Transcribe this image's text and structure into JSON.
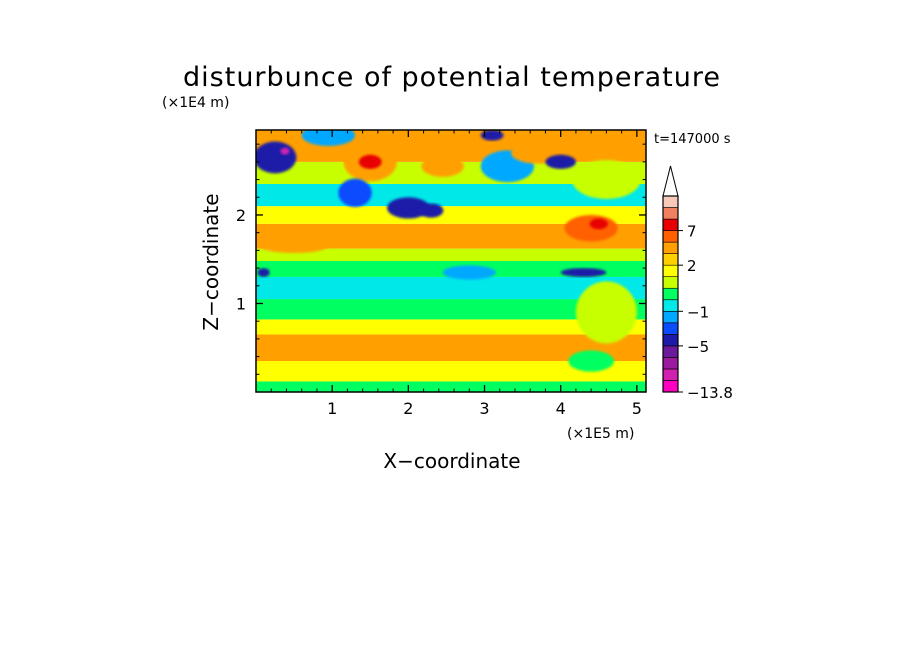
{
  "chart_data": {
    "type": "heatmap",
    "title": "disturbunce of potential temperature",
    "time_label": "t=147000 s",
    "xlabel": "X−coordinate",
    "ylabel": "Z−coordinate",
    "x_scale_label": "(×1E5 m)",
    "y_scale_label": "(×1E4 m)",
    "xlim": [
      0,
      5.12
    ],
    "ylim": [
      0,
      2.96
    ],
    "x_ticks": [
      1,
      2,
      3,
      4,
      5
    ],
    "y_ticks": [
      1,
      2
    ],
    "x_tick_labels": [
      "1",
      "2",
      "3",
      "4",
      "5"
    ],
    "y_tick_labels": [
      "1",
      "2"
    ],
    "colorbar": {
      "min": -13.8,
      "extend_max": true,
      "tick_labels": [
        "7",
        "2",
        "−1",
        "−5",
        "−13.8"
      ],
      "tick_values": [
        7,
        2,
        -1,
        -5,
        -13.8
      ],
      "bands": [
        {
          "from": -13.8,
          "to": -11,
          "color": "#ff00c0"
        },
        {
          "from": -11,
          "to": -9,
          "color": "#d020b0"
        },
        {
          "from": -9,
          "to": -7,
          "color": "#9a1aa0"
        },
        {
          "from": -7,
          "to": -5,
          "color": "#6a1a9a"
        },
        {
          "from": -5,
          "to": -3,
          "color": "#1c1ca8"
        },
        {
          "from": -3,
          "to": -2,
          "color": "#0c4cff"
        },
        {
          "from": -2,
          "to": -1,
          "color": "#00a8ff"
        },
        {
          "from": -1,
          "to": 0,
          "color": "#00e8e8"
        },
        {
          "from": 0,
          "to": 1,
          "color": "#00ff60"
        },
        {
          "from": 1,
          "to": 1.5,
          "color": "#c8ff00"
        },
        {
          "from": 1.5,
          "to": 2,
          "color": "#ffff00"
        },
        {
          "from": 2,
          "to": 3,
          "color": "#ffd000"
        },
        {
          "from": 3,
          "to": 5,
          "color": "#ffa000"
        },
        {
          "from": 5,
          "to": 7,
          "color": "#ff6000"
        },
        {
          "from": 7,
          "to": 9,
          "color": "#e80000"
        },
        {
          "from": 9,
          "to": 11,
          "color": "#f08060"
        },
        {
          "from": 11,
          "to": 13,
          "color": "#f8c8b8"
        }
      ]
    },
    "field": {
      "layers": [
        {
          "z": [
            0.0,
            0.12
          ],
          "x": [
            0.0,
            5.12
          ],
          "value": 0.5
        },
        {
          "z": [
            0.12,
            0.35
          ],
          "x": [
            0.0,
            5.12
          ],
          "value": 1.7
        },
        {
          "z": [
            0.35,
            0.65
          ],
          "x": [
            0.0,
            5.12
          ],
          "value": 3.5
        },
        {
          "z": [
            0.65,
            0.82
          ],
          "x": [
            0.0,
            5.12
          ],
          "value": 1.7
        },
        {
          "z": [
            0.82,
            1.05
          ],
          "x": [
            0.0,
            5.12
          ],
          "value": 0.5
        },
        {
          "z": [
            1.05,
            1.3
          ],
          "x": [
            0.0,
            5.12
          ],
          "value": -0.5
        },
        {
          "z": [
            1.3,
            1.48
          ],
          "x": [
            0.0,
            5.12
          ],
          "value": 0.5
        },
        {
          "z": [
            1.48,
            1.62
          ],
          "x": [
            0.0,
            5.12
          ],
          "value": 1.2
        },
        {
          "z": [
            1.62,
            1.9
          ],
          "x": [
            0.0,
            5.12
          ],
          "value": 3.5
        },
        {
          "z": [
            1.9,
            2.1
          ],
          "x": [
            0.0,
            5.12
          ],
          "value": 1.7
        },
        {
          "z": [
            2.1,
            2.35
          ],
          "x": [
            0.0,
            5.12
          ],
          "value": -0.5
        },
        {
          "z": [
            2.35,
            2.6
          ],
          "x": [
            0.0,
            5.12
          ],
          "value": 1.2
        },
        {
          "z": [
            2.6,
            2.96
          ],
          "x": [
            0.0,
            5.12
          ],
          "value": 3.5
        }
      ],
      "blobs": [
        {
          "x": 0.25,
          "z": 2.65,
          "rx": 0.28,
          "rz": 0.18,
          "value": -4
        },
        {
          "x": 0.38,
          "z": 2.72,
          "rx": 0.06,
          "rz": 0.04,
          "value": -10
        },
        {
          "x": 0.95,
          "z": 2.9,
          "rx": 0.35,
          "rz": 0.12,
          "value": -1.5
        },
        {
          "x": 1.5,
          "z": 2.6,
          "rx": 0.35,
          "rz": 0.22,
          "value": 4
        },
        {
          "x": 1.5,
          "z": 2.6,
          "rx": 0.15,
          "rz": 0.08,
          "value": 8
        },
        {
          "x": 1.3,
          "z": 2.25,
          "rx": 0.22,
          "rz": 0.16,
          "value": -2.5
        },
        {
          "x": 2.0,
          "z": 2.08,
          "rx": 0.28,
          "rz": 0.12,
          "value": -4
        },
        {
          "x": 2.3,
          "z": 2.05,
          "rx": 0.16,
          "rz": 0.08,
          "value": -4
        },
        {
          "x": 2.45,
          "z": 2.55,
          "rx": 0.28,
          "rz": 0.12,
          "value": 4
        },
        {
          "x": 3.3,
          "z": 2.55,
          "rx": 0.35,
          "rz": 0.18,
          "value": -1.5
        },
        {
          "x": 3.1,
          "z": 2.9,
          "rx": 0.15,
          "rz": 0.06,
          "value": -4
        },
        {
          "x": 3.7,
          "z": 2.7,
          "rx": 0.35,
          "rz": 0.12,
          "value": 4
        },
        {
          "x": 4.0,
          "z": 2.6,
          "rx": 0.2,
          "rz": 0.08,
          "value": -4
        },
        {
          "x": 4.6,
          "z": 2.4,
          "rx": 0.45,
          "rz": 0.22,
          "value": 1.2
        },
        {
          "x": 4.4,
          "z": 1.85,
          "rx": 0.35,
          "rz": 0.15,
          "value": 5
        },
        {
          "x": 4.5,
          "z": 1.9,
          "rx": 0.12,
          "rz": 0.06,
          "value": 8
        },
        {
          "x": 4.3,
          "z": 1.35,
          "rx": 0.3,
          "rz": 0.05,
          "value": -3.5
        },
        {
          "x": 0.1,
          "z": 1.35,
          "rx": 0.08,
          "rz": 0.05,
          "value": -3.5
        },
        {
          "x": 2.8,
          "z": 1.35,
          "rx": 0.35,
          "rz": 0.08,
          "value": -1.5
        },
        {
          "x": 4.6,
          "z": 0.9,
          "rx": 0.4,
          "rz": 0.35,
          "value": 1.2
        },
        {
          "x": 4.4,
          "z": 0.35,
          "rx": 0.3,
          "rz": 0.12,
          "value": 0.5
        },
        {
          "x": 0.5,
          "z": 1.65,
          "rx": 0.45,
          "rz": 0.08,
          "value": 4
        }
      ]
    }
  }
}
